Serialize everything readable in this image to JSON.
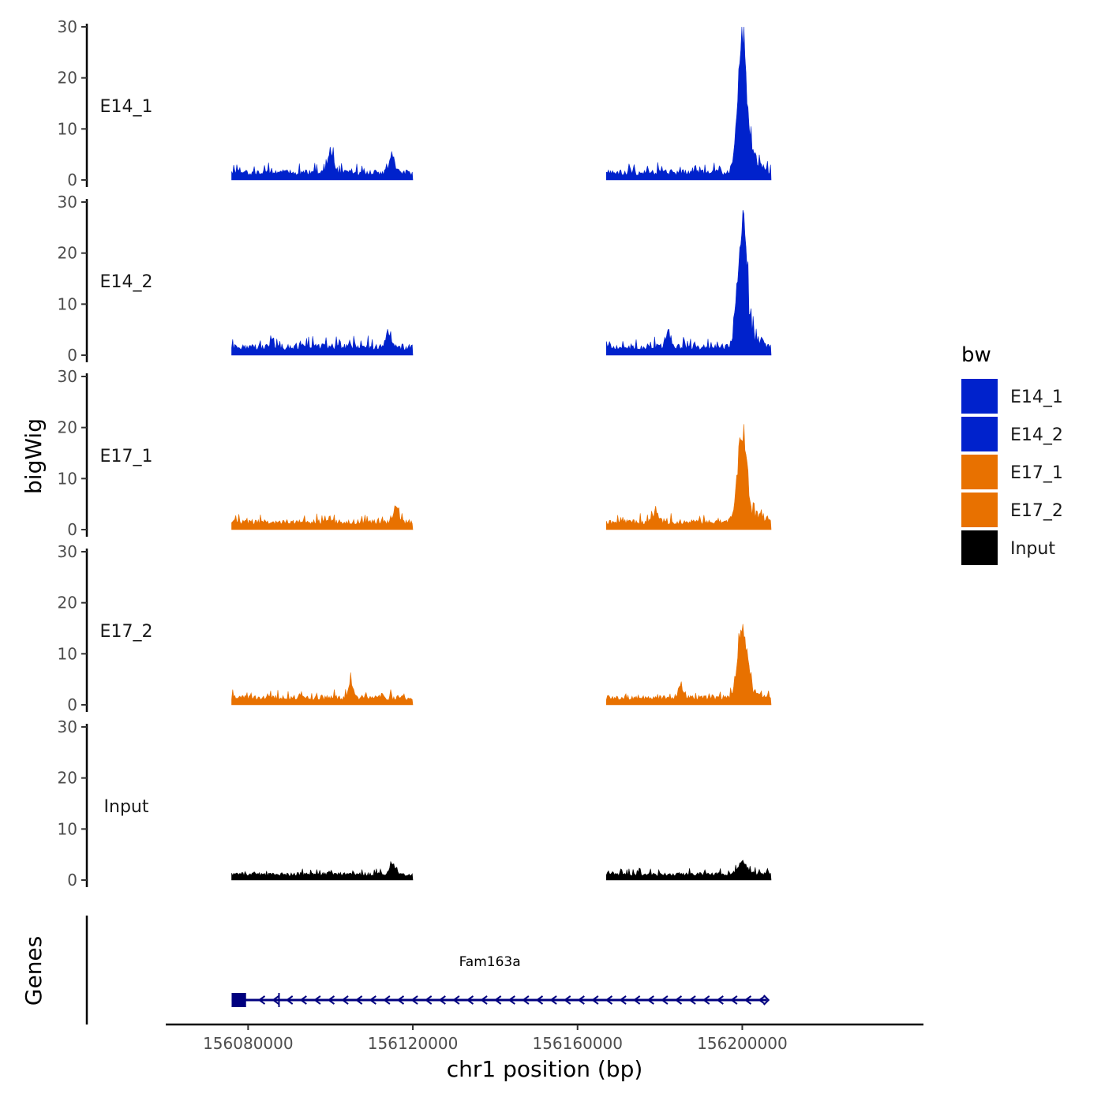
{
  "chart_data": {
    "type": "area",
    "ylabel": "bigWig",
    "xlabel": "chr1 position (bp)",
    "ylim": [
      0,
      30
    ],
    "yticks": [
      0,
      10,
      20,
      30
    ],
    "xlim": [
      156060000,
      156244000
    ],
    "xticks": [
      156080000,
      156120000,
      156160000,
      156200000
    ],
    "xtick_labels": [
      "156080000",
      "156120000",
      "156160000",
      "156200000"
    ],
    "regions": [
      [
        156076000,
        156120000
      ],
      [
        156167000,
        156207000
      ]
    ],
    "peak_center": 156200000,
    "series": [
      {
        "name": "E14_1",
        "color": "#0022cc",
        "baseline": 0.9,
        "noise": 1.6,
        "peak_height": 29,
        "bumps": [
          [
            156100000,
            5.5
          ],
          [
            156115000,
            4
          ]
        ]
      },
      {
        "name": "E14_2",
        "color": "#0022cc",
        "baseline": 1.0,
        "noise": 1.8,
        "peak_height": 27,
        "bumps": [
          [
            156114000,
            3
          ],
          [
            156182000,
            3
          ]
        ]
      },
      {
        "name": "E17_1",
        "color": "#e87100",
        "baseline": 1.0,
        "noise": 1.4,
        "peak_height": 20,
        "bumps": [
          [
            156116000,
            4
          ],
          [
            156179000,
            3
          ]
        ]
      },
      {
        "name": "E17_2",
        "color": "#e87100",
        "baseline": 0.9,
        "noise": 1.4,
        "peak_height": 16,
        "bumps": [
          [
            156105000,
            3.5
          ],
          [
            156185000,
            3
          ]
        ]
      },
      {
        "name": "Input",
        "color": "#000000",
        "baseline": 0.8,
        "noise": 1.0,
        "peak_height": 2.5,
        "bumps": [
          [
            156115000,
            2.8
          ]
        ]
      }
    ],
    "legend": {
      "title": "bw",
      "position": "right",
      "entries": [
        {
          "label": "E14_1",
          "color": "#0022cc"
        },
        {
          "label": "E14_2",
          "color": "#0022cc"
        },
        {
          "label": "E17_1",
          "color": "#e87100"
        },
        {
          "label": "E17_2",
          "color": "#e87100"
        },
        {
          "label": "Input",
          "color": "#000000"
        }
      ]
    },
    "genes_track": {
      "title": "Genes",
      "gene": "Fam163a",
      "color": "#00007f",
      "start": 156076000,
      "end": 156206000,
      "strand": "-",
      "exon": [
        156076000,
        156079500
      ]
    }
  }
}
